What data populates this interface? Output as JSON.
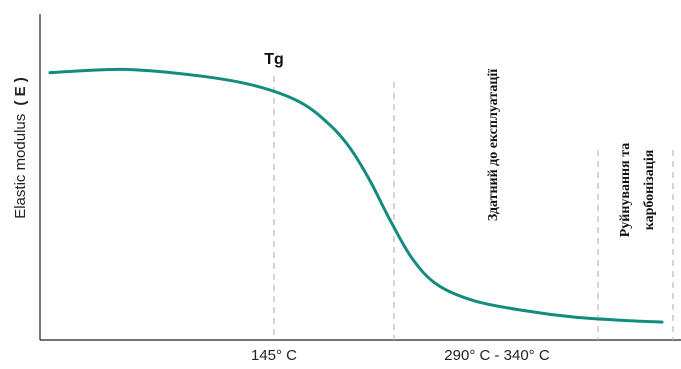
{
  "chart_data": {
    "type": "line",
    "x_tick_labels": [
      "145° C",
      "290° C - 340° C"
    ],
    "ylabel": {
      "main": "Elastic modulus",
      "unit": "( E )"
    },
    "annotations": {
      "tg": "Tg",
      "usable": "Здатний до експлуатації",
      "destruction_line1": "Руйнування та",
      "destruction_line2": "карбонізація"
    },
    "series": [
      {
        "x": [
          0,
          0.3,
          0.6,
          0.82,
          1.0,
          1.12,
          1.2,
          1.28,
          1.36,
          1.45,
          1.55,
          1.7,
          1.9,
          2.1,
          2.3,
          2.45
        ],
        "y": [
          0.82,
          0.83,
          0.81,
          0.78,
          0.73,
          0.66,
          0.59,
          0.49,
          0.37,
          0.25,
          0.17,
          0.12,
          0.09,
          0.07,
          0.06,
          0.055
        ]
      }
    ],
    "grid": false,
    "colors": {
      "curve": "#138c7e",
      "axis": "#222222",
      "guide": "#b9b9b9"
    }
  }
}
